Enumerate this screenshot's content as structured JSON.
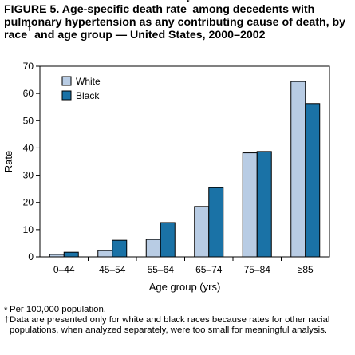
{
  "page": {
    "title_main": "FIGURE 5. Age-specific death rate",
    "title_mark1": "*",
    "title_mid": " among decedents with pulmonary hypertension as any contributing cause of death, by race",
    "title_mark2": "†",
    "title_end": " and age group — United States, 2000–2002",
    "footnotes": [
      {
        "mark": "*",
        "text": "Per 100,000 population."
      },
      {
        "mark": "†",
        "text": "Data are presented only for white and black races because rates for other racial populations, when analyzed separately, were too small for meaningful analysis."
      }
    ]
  },
  "chart_data": {
    "type": "bar",
    "xlabel": "Age group (yrs)",
    "ylabel": "Rate",
    "ylim": [
      0,
      70
    ],
    "yticks": [
      0,
      10,
      20,
      30,
      40,
      50,
      60,
      70
    ],
    "categories": [
      "0–44",
      "45–54",
      "55–64",
      "65–74",
      "75–84",
      "≥85"
    ],
    "series": [
      {
        "name": "White",
        "color": "#b8cce4",
        "values": [
          0.9,
          2.3,
          6.4,
          18.5,
          38.2,
          64.4
        ]
      },
      {
        "name": "Black",
        "color": "#1a72a6",
        "values": [
          1.7,
          6.1,
          12.6,
          25.4,
          38.7,
          56.3
        ]
      }
    ],
    "legend_position": "top-left",
    "grid": false
  }
}
